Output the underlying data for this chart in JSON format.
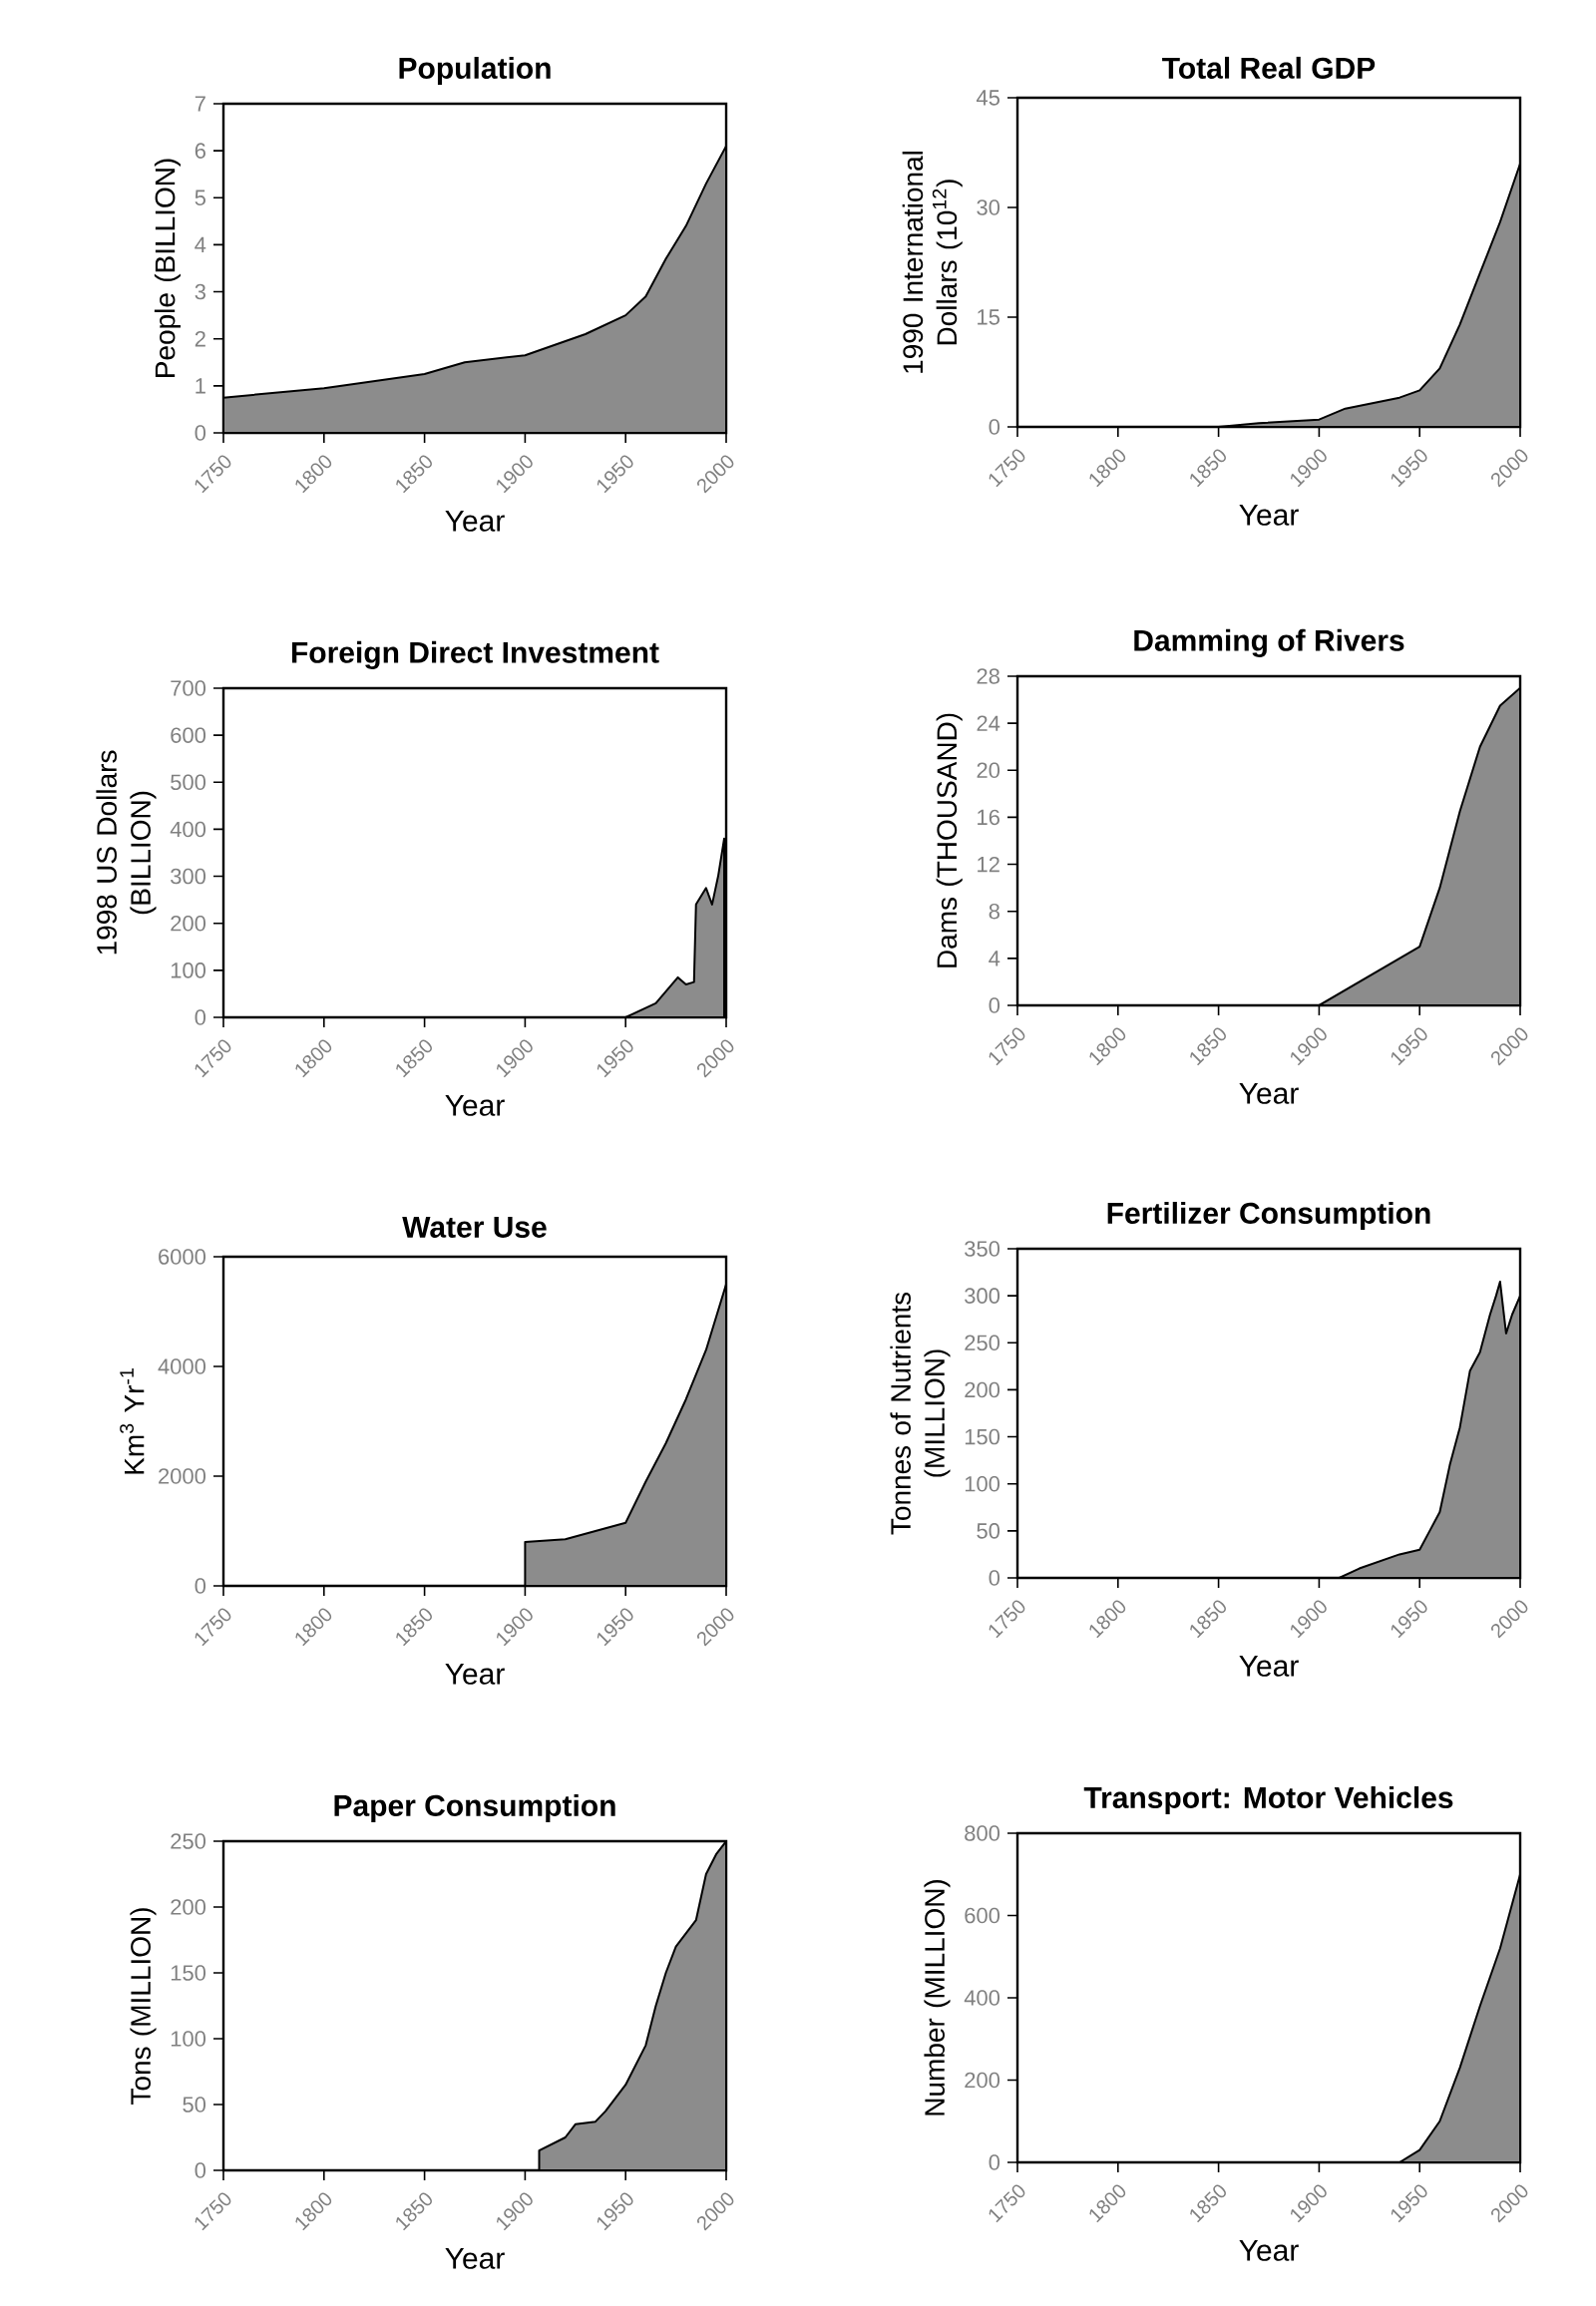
{
  "chart_data": [
    {
      "type": "area",
      "title": "Population",
      "xlabel": "Year",
      "ylabel": "People (BILLION)",
      "color": "#8c8c8c",
      "xlim": [
        1750,
        2000
      ],
      "xticks": [
        1750,
        1800,
        1850,
        1900,
        1950,
        2000
      ],
      "ylim": [
        0,
        7
      ],
      "yticks": [
        0,
        1,
        2,
        3,
        4,
        5,
        6,
        7
      ],
      "x": [
        1750,
        1800,
        1850,
        1870,
        1900,
        1930,
        1950,
        1960,
        1970,
        1980,
        1990,
        2000
      ],
      "values": [
        0.75,
        0.95,
        1.25,
        1.5,
        1.65,
        2.1,
        2.5,
        2.9,
        3.7,
        4.4,
        5.3,
        6.1
      ]
    },
    {
      "type": "area",
      "title": "Total Real GDP",
      "xlabel": "Year",
      "ylabel": "1990 International Dollars (10$^{12}$)",
      "color": "#8c8c8c",
      "xlim": [
        1750,
        2000
      ],
      "xticks": [
        1750,
        1800,
        1850,
        1900,
        1950,
        2000
      ],
      "ylim": [
        0,
        45
      ],
      "yticks": [
        0,
        15,
        30,
        45
      ],
      "x": [
        1750,
        1850,
        1870,
        1900,
        1913,
        1940,
        1950,
        1960,
        1970,
        1980,
        1990,
        2000
      ],
      "values": [
        0,
        0,
        0.5,
        1,
        2.5,
        4,
        5,
        8,
        14,
        21,
        28,
        36
      ]
    },
    {
      "type": "area",
      "title": "Foreign Direct Investment",
      "xlabel": "Year",
      "ylabel": "1998 US Dollars (BILLION)",
      "color": "#8c8c8c",
      "xlim": [
        1750,
        2000
      ],
      "xticks": [
        1750,
        1800,
        1850,
        1900,
        1950,
        2000
      ],
      "ylim": [
        0,
        700
      ],
      "yticks": [
        0,
        100,
        200,
        300,
        400,
        500,
        600,
        700
      ],
      "x": [
        1750,
        1950,
        1965,
        1976,
        1980,
        1984,
        1985,
        1990,
        1993,
        1996,
        1999
      ],
      "values": [
        0,
        0,
        30,
        85,
        70,
        75,
        240,
        275,
        240,
        300,
        380
      ]
    },
    {
      "type": "area",
      "title": "Damming of Rivers",
      "xlabel": "Year",
      "ylabel": "Dams (THOUSAND)",
      "color": "#8c8c8c",
      "xlim": [
        1750,
        2000
      ],
      "xticks": [
        1750,
        1800,
        1850,
        1900,
        1950,
        2000
      ],
      "ylim": [
        0,
        28
      ],
      "yticks": [
        0,
        4,
        8,
        12,
        16,
        20,
        24,
        28
      ],
      "x": [
        1750,
        1900,
        1950,
        1960,
        1970,
        1980,
        1990,
        2000
      ],
      "values": [
        0,
        0,
        5,
        10,
        16.5,
        22,
        25.5,
        27
      ]
    },
    {
      "type": "area",
      "title": "Water Use",
      "xlabel": "Year",
      "ylabel": "Km$^{3}$ Yr$^{-1}$",
      "color": "#8c8c8c",
      "xlim": [
        1750,
        2000
      ],
      "xticks": [
        1750,
        1800,
        1850,
        1900,
        1950,
        2000
      ],
      "ylim": [
        0,
        6000
      ],
      "yticks": [
        0,
        2000,
        4000,
        6000
      ],
      "x": [
        1750,
        1900,
        1900,
        1920,
        1940,
        1950,
        1960,
        1970,
        1980,
        1990,
        2000
      ],
      "values": [
        0,
        0,
        800,
        850,
        1050,
        1150,
        1900,
        2600,
        3400,
        4300,
        5500
      ]
    },
    {
      "type": "area",
      "title": "Fertilizer Consumption",
      "xlabel": "Year",
      "ylabel": "Tonnes of Nutrients (MILLION)",
      "color": "#8c8c8c",
      "xlim": [
        1750,
        2000
      ],
      "xticks": [
        1750,
        1800,
        1850,
        1900,
        1950,
        2000
      ],
      "ylim": [
        0,
        350
      ],
      "yticks": [
        0,
        50,
        100,
        150,
        200,
        250,
        300,
        350
      ],
      "x": [
        1750,
        1910,
        1920,
        1940,
        1950,
        1955,
        1960,
        1965,
        1970,
        1975,
        1980,
        1985,
        1988,
        1990,
        1993,
        1996,
        2000
      ],
      "values": [
        0,
        0,
        10,
        25,
        30,
        50,
        70,
        120,
        160,
        220,
        240,
        280,
        300,
        315,
        260,
        280,
        300
      ]
    },
    {
      "type": "area",
      "title": "Paper Consumption",
      "xlabel": "Year",
      "ylabel": "Tons (MILLION)",
      "color": "#8c8c8c",
      "xlim": [
        1750,
        2000
      ],
      "xticks": [
        1750,
        1800,
        1850,
        1900,
        1950,
        2000
      ],
      "ylim": [
        0,
        250
      ],
      "yticks": [
        0,
        50,
        100,
        150,
        200,
        250
      ],
      "x": [
        1750,
        1907,
        1907,
        1920,
        1925,
        1935,
        1940,
        1950,
        1960,
        1965,
        1968,
        1970,
        1975,
        1980,
        1985,
        1990,
        1995,
        2000
      ],
      "values": [
        0,
        0,
        15,
        25,
        35,
        37,
        45,
        65,
        95,
        125,
        140,
        150,
        170,
        180,
        190,
        225,
        240,
        250
      ]
    },
    {
      "type": "area",
      "title": "Transport: Motor Vehicles",
      "xlabel": "Year",
      "ylabel": "Number (MILLION)",
      "color": "#8c8c8c",
      "xlim": [
        1750,
        2000
      ],
      "xticks": [
        1750,
        1800,
        1850,
        1900,
        1950,
        2000
      ],
      "ylim": [
        0,
        800
      ],
      "yticks": [
        0,
        200,
        400,
        600,
        800
      ],
      "x": [
        1750,
        1940,
        1950,
        1960,
        1970,
        1980,
        1990,
        2000
      ],
      "values": [
        0,
        0,
        30,
        100,
        230,
        380,
        520,
        700
      ]
    }
  ]
}
